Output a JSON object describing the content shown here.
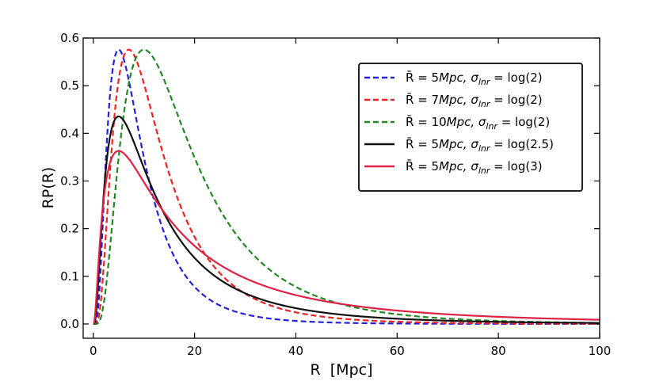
{
  "chart_data": {
    "type": "line",
    "title": "",
    "xlabel": "R  [Mpc]",
    "ylabel": "RP(R)",
    "xlim": [
      -2,
      100
    ],
    "ylim": [
      -0.03,
      0.6
    ],
    "xticks": [
      0,
      20,
      40,
      60,
      80,
      100
    ],
    "yticks": [
      0.0,
      0.1,
      0.2,
      0.3,
      0.4,
      0.5,
      0.6
    ],
    "xtick_labels": [
      "0",
      "20",
      "40",
      "60",
      "80",
      "100"
    ],
    "ytick_labels": [
      "0.0",
      "0.1",
      "0.2",
      "0.3",
      "0.4",
      "0.5",
      "0.6"
    ],
    "grid": false,
    "legend_position": "top-right",
    "series": [
      {
        "name": "R̄ = 5Mpc, σlnr = log(2)",
        "label": {
          "pre": "R̄ = 5",
          "unit": "Mpc",
          "mid": ", σ",
          "sub": "lnr",
          "post": " = log(2)"
        },
        "mean_R": 5,
        "sigma": "log(2)",
        "sigma_value": 0.6931,
        "color": "#2222dd",
        "style": "dashed",
        "peak": 0.5756
      },
      {
        "name": "R̄ = 7Mpc, σlnr = log(2)",
        "label": {
          "pre": "R̄ = 7",
          "unit": "Mpc",
          "mid": ", σ",
          "sub": "lnr",
          "post": " = log(2)"
        },
        "mean_R": 7,
        "sigma": "log(2)",
        "sigma_value": 0.6931,
        "color": "#ee2222",
        "style": "dashed",
        "peak": 0.5756
      },
      {
        "name": "R̄ = 10Mpc, σlnr = log(2)",
        "label": {
          "pre": "R̄ = 10",
          "unit": "Mpc",
          "mid": ", σ",
          "sub": "lnr",
          "post": " = log(2)"
        },
        "mean_R": 10,
        "sigma": "log(2)",
        "sigma_value": 0.6931,
        "color": "#228822",
        "style": "dashed",
        "peak": 0.5756
      },
      {
        "name": "R̄ = 5Mpc, σlnr = log(2.5)",
        "label": {
          "pre": "R̄ = 5",
          "unit": "Mpc",
          "mid": ", σ",
          "sub": "lnr",
          "post": " = log(2.5)"
        },
        "mean_R": 5,
        "sigma": "log(2.5)",
        "sigma_value": 0.9163,
        "color": "#111111",
        "style": "solid",
        "peak": 0.4354
      },
      {
        "name": "R̄ = 5Mpc, σlnr = log(3)",
        "label": {
          "pre": "R̄ = 5",
          "unit": "Mpc",
          "mid": ", σ",
          "sub": "lnr",
          "post": " = log(3)"
        },
        "mean_R": 5,
        "sigma": "log(3)",
        "sigma_value": 1.0986,
        "color": "#dd2244",
        "style": "solid",
        "peak": 0.3631
      }
    ]
  }
}
